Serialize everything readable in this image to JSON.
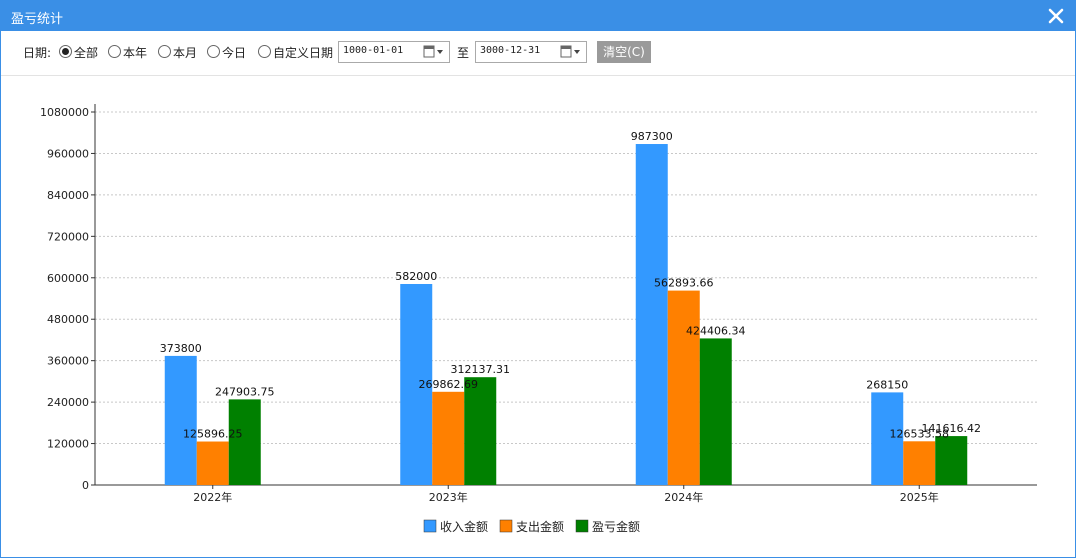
{
  "window": {
    "title": "盈亏统计"
  },
  "filter": {
    "date_label": "日期:",
    "options": [
      {
        "label": "全部",
        "checked": true
      },
      {
        "label": "本年",
        "checked": false
      },
      {
        "label": "本月",
        "checked": false
      },
      {
        "label": "今日",
        "checked": false
      },
      {
        "label": "自定义日期",
        "checked": false
      }
    ],
    "start_date": "1000-01-01",
    "to_label": "至",
    "end_date": "3000-12-31",
    "clear_label": "清空(C)"
  },
  "colors": {
    "titlebar": "#3a8fe6",
    "income": "#3399ff",
    "expense": "#ff8000",
    "profit": "#008000"
  },
  "chart_data": {
    "type": "bar",
    "categories": [
      "2022年",
      "2023年",
      "2024年",
      "2025年"
    ],
    "series": [
      {
        "name": "收入金额",
        "values": [
          373800,
          582000,
          987300,
          268150
        ],
        "labels": [
          "373800",
          "582000",
          "987300",
          "268150"
        ]
      },
      {
        "name": "支出金额",
        "values": [
          125896.25,
          269862.69,
          562893.66,
          126533.58
        ],
        "labels": [
          "125896.25",
          "269862.69",
          "562893.66",
          "126533.58"
        ]
      },
      {
        "name": "盈亏金额",
        "values": [
          247903.75,
          312137.31,
          424406.34,
          141616.42
        ],
        "labels": [
          "247903.75",
          "312137.31",
          "424406.34",
          "141616.42"
        ]
      }
    ],
    "ylim": [
      0,
      1080000
    ],
    "yticks": [
      "0",
      "120000",
      "240000",
      "360000",
      "480000",
      "600000",
      "720000",
      "840000",
      "960000",
      "1080000"
    ],
    "grid": true,
    "legend_position": "bottom-center"
  }
}
